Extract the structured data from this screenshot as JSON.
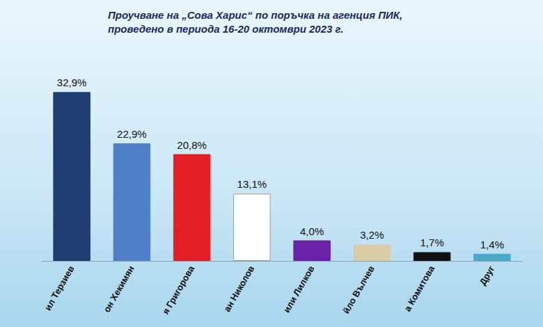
{
  "chart_data": {
    "type": "bar",
    "title": "Проучване на „Сова Харис“ по поръчка на агенция ПИК,\nпроведено в периода 16-20 октомври 2023 г.",
    "categories": [
      "ил Терзиев",
      "он Хекимян",
      "я Григорова",
      "ан Николов",
      "или Лилков",
      "йло Вълчев",
      "а Комитова",
      "Друг"
    ],
    "values": [
      32.9,
      22.9,
      20.8,
      13.1,
      4.0,
      3.2,
      1.7,
      1.4
    ],
    "value_labels": [
      "32,9%",
      "22,9%",
      "20,8%",
      "13,1%",
      "4,0%",
      "3,2%",
      "1,7%",
      "1,4%"
    ],
    "colors": [
      "#1f3f73",
      "#4f7fc4",
      "#e31e24",
      "#ffffff",
      "#6a22a8",
      "#d9cba6",
      "#111111",
      "#4aa9c9"
    ],
    "ylim": [
      0,
      40
    ],
    "data_labels": true,
    "tick_labels": "x",
    "grid": false
  }
}
